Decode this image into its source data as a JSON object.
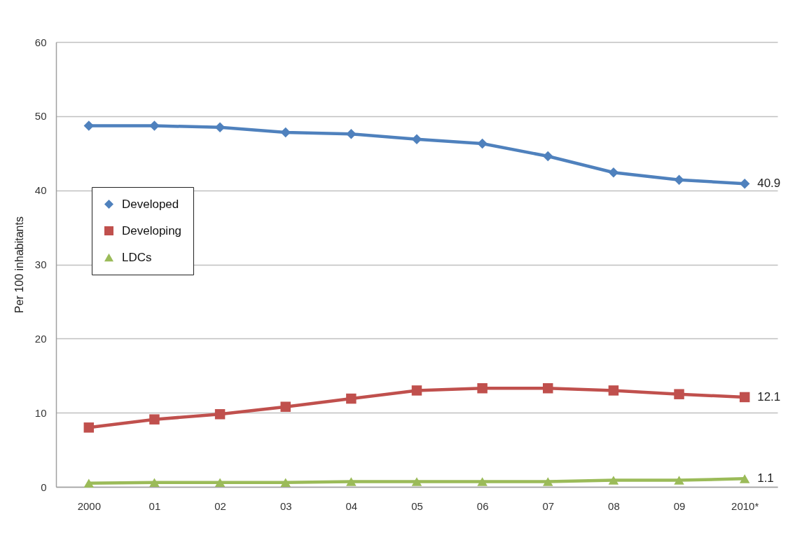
{
  "chart_data": {
    "type": "line",
    "ylabel": "Per 100 inhabitants",
    "categories": [
      "2000",
      "01",
      "02",
      "03",
      "04",
      "05",
      "06",
      "07",
      "08",
      "09",
      "2010*"
    ],
    "series": [
      {
        "name": "Developed",
        "color": "#4f81bd",
        "marker": "diamond",
        "values": [
          48.7,
          48.7,
          48.5,
          47.8,
          47.6,
          46.9,
          46.3,
          44.6,
          42.4,
          41.4,
          40.9
        ],
        "value_labels": [
          null,
          null,
          null,
          null,
          null,
          null,
          null,
          null,
          null,
          null,
          "40.9"
        ]
      },
      {
        "name": "Developing",
        "color": "#c0504d",
        "marker": "square",
        "values": [
          8.0,
          9.1,
          9.8,
          10.8,
          11.9,
          13.0,
          13.3,
          13.3,
          13.0,
          12.5,
          12.1
        ],
        "value_labels": [
          null,
          null,
          null,
          null,
          null,
          null,
          null,
          null,
          null,
          null,
          "12.1"
        ]
      },
      {
        "name": "LDCs",
        "color": "#9bbb59",
        "marker": "triangle",
        "values": [
          0.5,
          0.6,
          0.6,
          0.6,
          0.7,
          0.7,
          0.7,
          0.7,
          0.9,
          0.9,
          1.1
        ],
        "value_labels": [
          null,
          null,
          null,
          null,
          null,
          null,
          null,
          null,
          null,
          null,
          "1.1"
        ]
      }
    ],
    "ylim": [
      0,
      60
    ],
    "yticks": [
      0,
      10,
      20,
      30,
      40,
      50,
      60
    ],
    "grid": "y",
    "legend": "left",
    "line_style": "solid"
  }
}
